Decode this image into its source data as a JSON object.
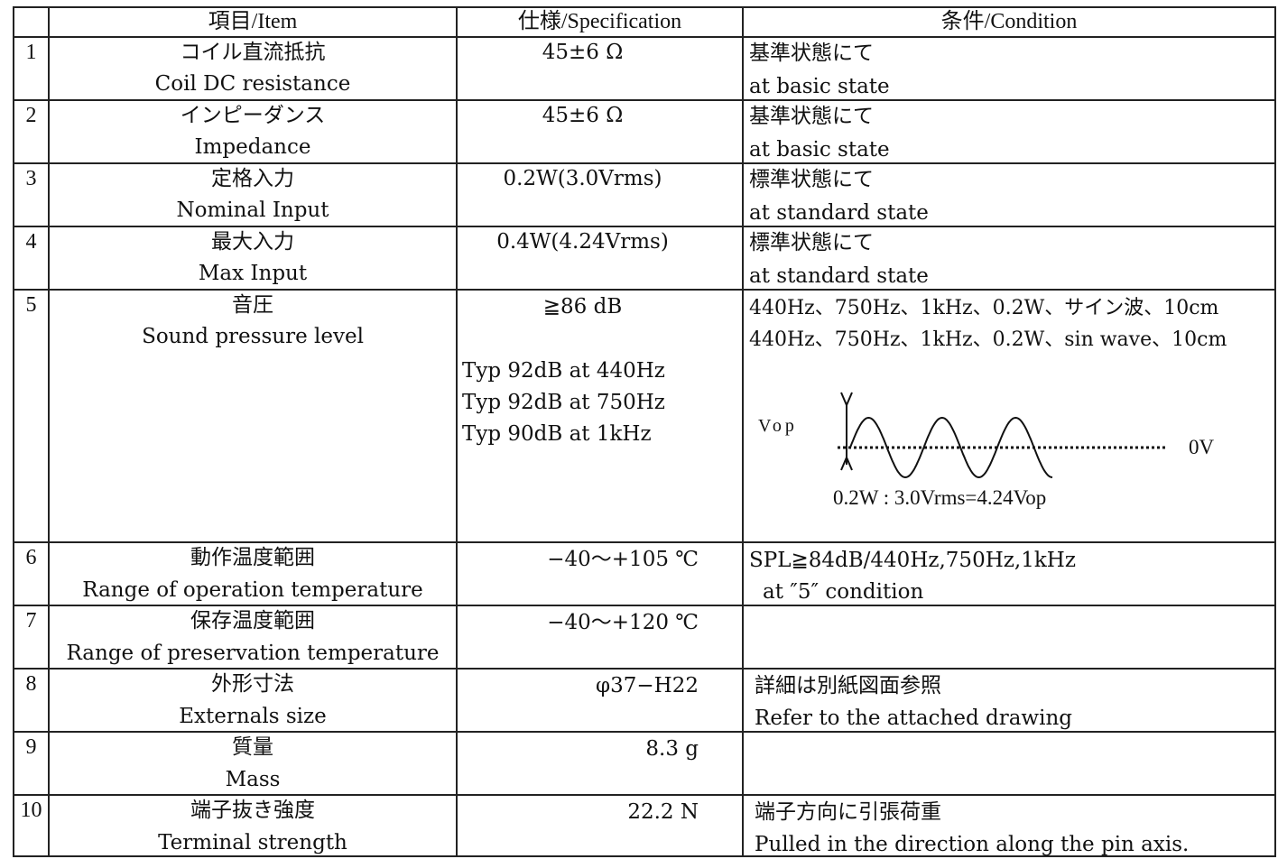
{
  "header": {
    "num": "",
    "item": "項目/Item",
    "spec": "仕様/Specification",
    "cond": "条件/Condition"
  },
  "rows": [
    {
      "no": "1",
      "item_ja": "コイル直流抵抗",
      "item_en": "Coil DC resistance",
      "spec": "45±6 Ω",
      "cond_ja": "基準状態にて",
      "cond_en": "at basic state"
    },
    {
      "no": "2",
      "item_ja": "インピーダンス",
      "item_en": "Impedance",
      "spec": "45±6 Ω",
      "cond_ja": "基準状態にて",
      "cond_en": "at basic state"
    },
    {
      "no": "3",
      "item_ja": "定格入力",
      "item_en": "Nominal Input",
      "spec": "0.2W(3.0Vrms)",
      "cond_ja": "標準状態にて",
      "cond_en": "at standard state"
    },
    {
      "no": "4",
      "item_ja": "最大入力",
      "item_en": "Max Input",
      "spec": "0.4W(4.24Vrms)",
      "cond_ja": "標準状態にて",
      "cond_en": "at standard state"
    },
    {
      "no": "5",
      "item_ja": "音圧",
      "item_en": "Sound pressure level",
      "spec": "≧86 dB",
      "spec_typ": [
        "Typ 92dB at 440Hz",
        "Typ 92dB at 750Hz",
        "Typ 90dB at 1kHz"
      ],
      "cond_ja": "440Hz、750Hz、1kHz、0.2W、サイン波、10cm",
      "cond_en": "440Hz、750Hz、1kHz、0.2W、sin wave、10cm",
      "wave": {
        "vop_label": "Vop",
        "zero_label": "0V",
        "formula": "0.2W : 3.0Vrms=4.24Vop"
      }
    },
    {
      "no": "6",
      "item_ja": "動作温度範囲",
      "item_en": "Range of operation temperature",
      "spec": "−40〜+105 ℃",
      "cond_ja": "SPL≧84dB/440Hz,750Hz,1kHz",
      "cond_en": "at ″5″ condition"
    },
    {
      "no": "7",
      "item_ja": "保存温度範囲",
      "item_en": "Range of preservation temperature",
      "spec": "−40〜+120 ℃",
      "cond_ja": "",
      "cond_en": ""
    },
    {
      "no": "8",
      "item_ja": "外形寸法",
      "item_en": "Externals size",
      "spec": "φ37−H22",
      "cond_ja": "詳細は別紙図面参照",
      "cond_en": "Refer to the attached drawing"
    },
    {
      "no": "9",
      "item_ja": "質量",
      "item_en": "Mass",
      "spec": "8.3 g",
      "cond_ja": "",
      "cond_en": ""
    },
    {
      "no": "10",
      "item_ja": "端子抜き強度",
      "item_en": "Terminal strength",
      "spec": "22.2 N",
      "cond_ja": "端子方向に引張荷重",
      "cond_en": "Pulled in the direction along the pin axis."
    }
  ]
}
